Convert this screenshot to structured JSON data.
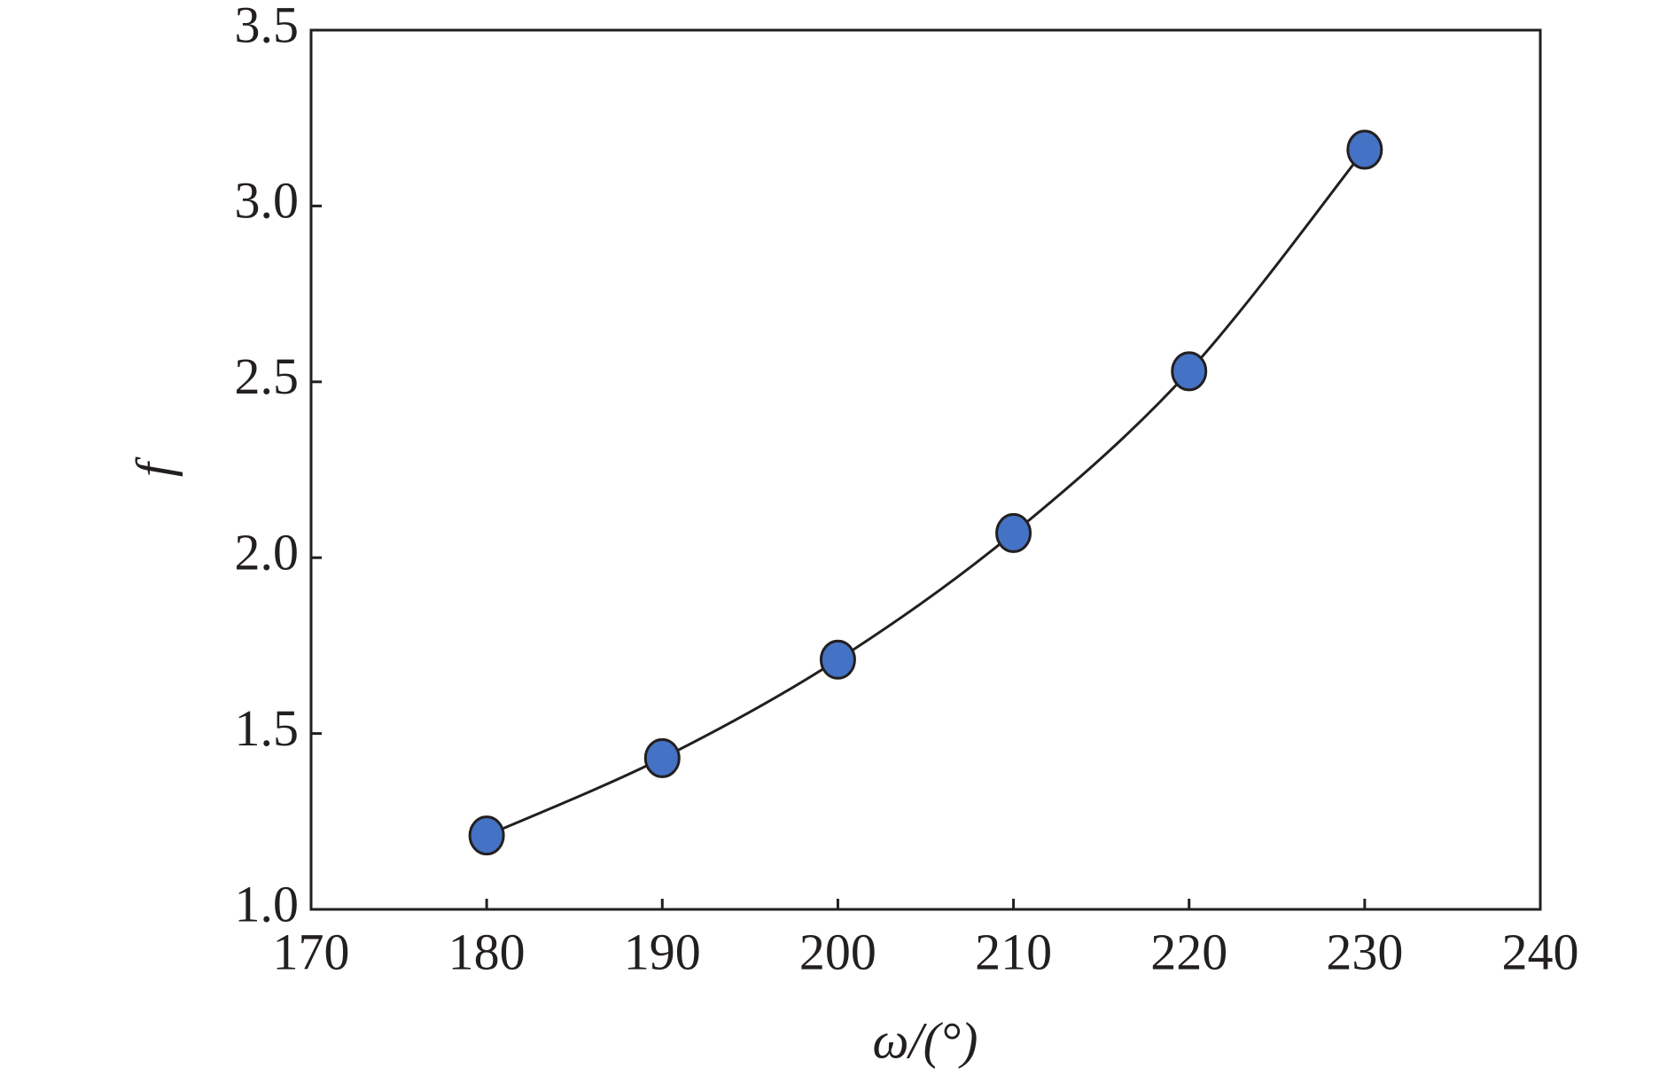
{
  "chart_data": {
    "type": "line",
    "x_label": "ω/(°)",
    "y_label": "f",
    "x": [
      180,
      190,
      200,
      210,
      220,
      230
    ],
    "series": [
      {
        "color": "#4472c4",
        "values": [
          1.21,
          1.43,
          1.71,
          2.07,
          2.53,
          3.16
        ]
      }
    ],
    "xlim": [
      170,
      240
    ],
    "xticks": [
      170,
      180,
      190,
      200,
      210,
      220,
      230,
      240
    ],
    "ylim": [
      1,
      3.5
    ],
    "yticks": [
      {
        "value": 1,
        "label": "1.0"
      },
      1.5,
      {
        "value": 2,
        "label": "2.0"
      },
      2.5,
      {
        "value": 3,
        "label": "3.0"
      },
      3.5
    ]
  }
}
